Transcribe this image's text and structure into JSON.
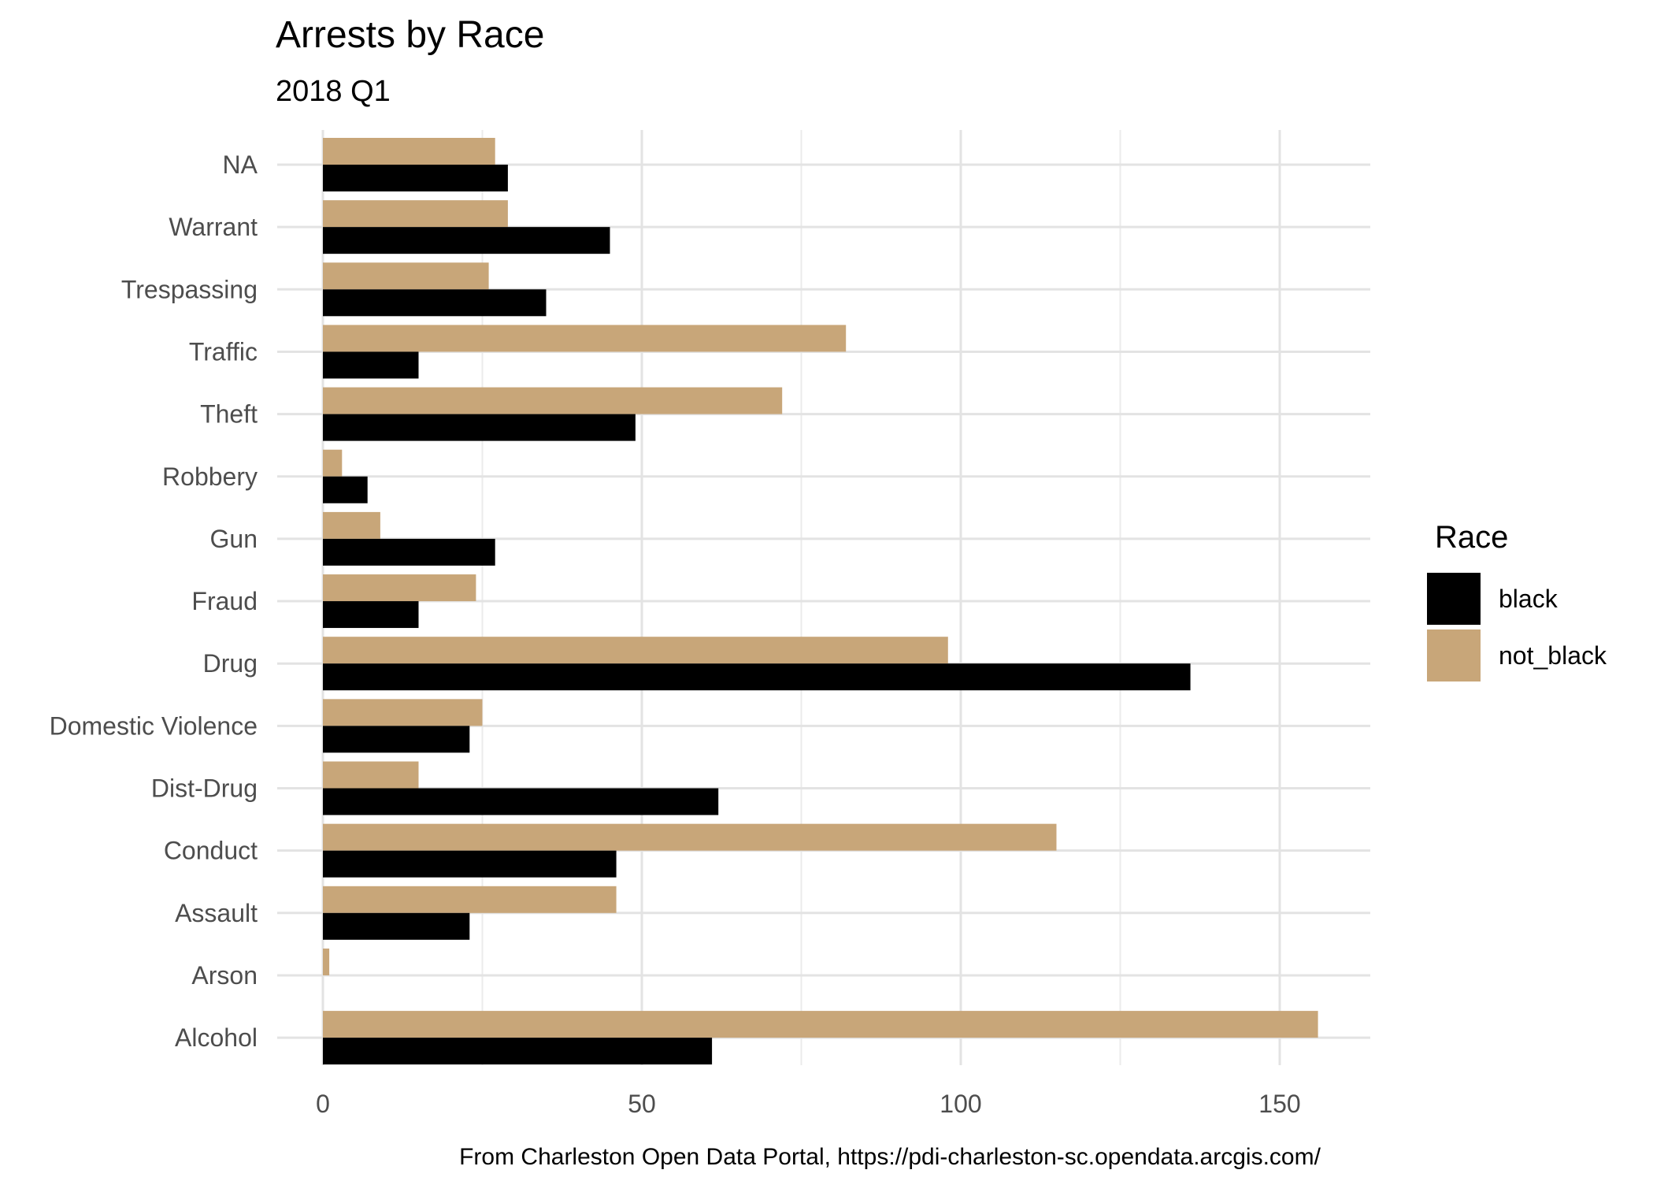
{
  "chart_data": {
    "type": "bar",
    "orientation": "horizontal",
    "title": "Arrests by Race",
    "subtitle": "2018 Q1",
    "caption": "From Charleston Open Data Portal, https://pdi-charleston-sc.opendata.arcgis.com/",
    "xlabel": "",
    "ylabel": "",
    "xlim": [
      0,
      164
    ],
    "x_ticks": [
      0,
      50,
      100,
      150
    ],
    "grid": true,
    "legend": {
      "title": "Race",
      "position": "right"
    },
    "categories": [
      "NA",
      "Warrant",
      "Trespassing",
      "Traffic",
      "Theft",
      "Robbery",
      "Gun",
      "Fraud",
      "Drug",
      "Domestic Violence",
      "Dist-Drug",
      "Conduct",
      "Assault",
      "Arson",
      "Alcohol"
    ],
    "series": [
      {
        "name": "black",
        "color": "#000000",
        "values": [
          29,
          45,
          35,
          15,
          49,
          7,
          27,
          15,
          136,
          23,
          62,
          46,
          23,
          0,
          61
        ]
      },
      {
        "name": "not_black",
        "color": "#c8a679",
        "values": [
          27,
          29,
          26,
          82,
          72,
          3,
          9,
          24,
          98,
          25,
          15,
          115,
          46,
          1,
          156
        ]
      }
    ]
  }
}
